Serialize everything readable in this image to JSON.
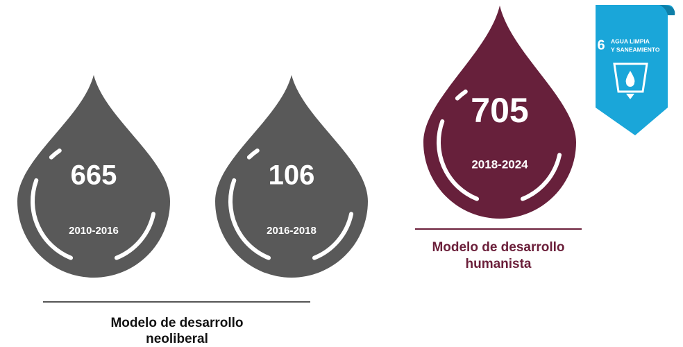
{
  "drops": [
    {
      "value": 665,
      "period": "2010-2016"
    },
    {
      "value": 106,
      "period": "2016-2018"
    },
    {
      "value": 705,
      "period": "2018-2024"
    }
  ],
  "groups": [
    {
      "label_lines": [
        "Modelo de desarrollo",
        "neoliberal"
      ]
    },
    {
      "label_lines": [
        "Modelo de desarrollo",
        "humanista"
      ]
    }
  ],
  "badge": {
    "number": 6,
    "lines": [
      "AGUA LIMPIA",
      "Y SANEAMIENTO"
    ]
  }
}
